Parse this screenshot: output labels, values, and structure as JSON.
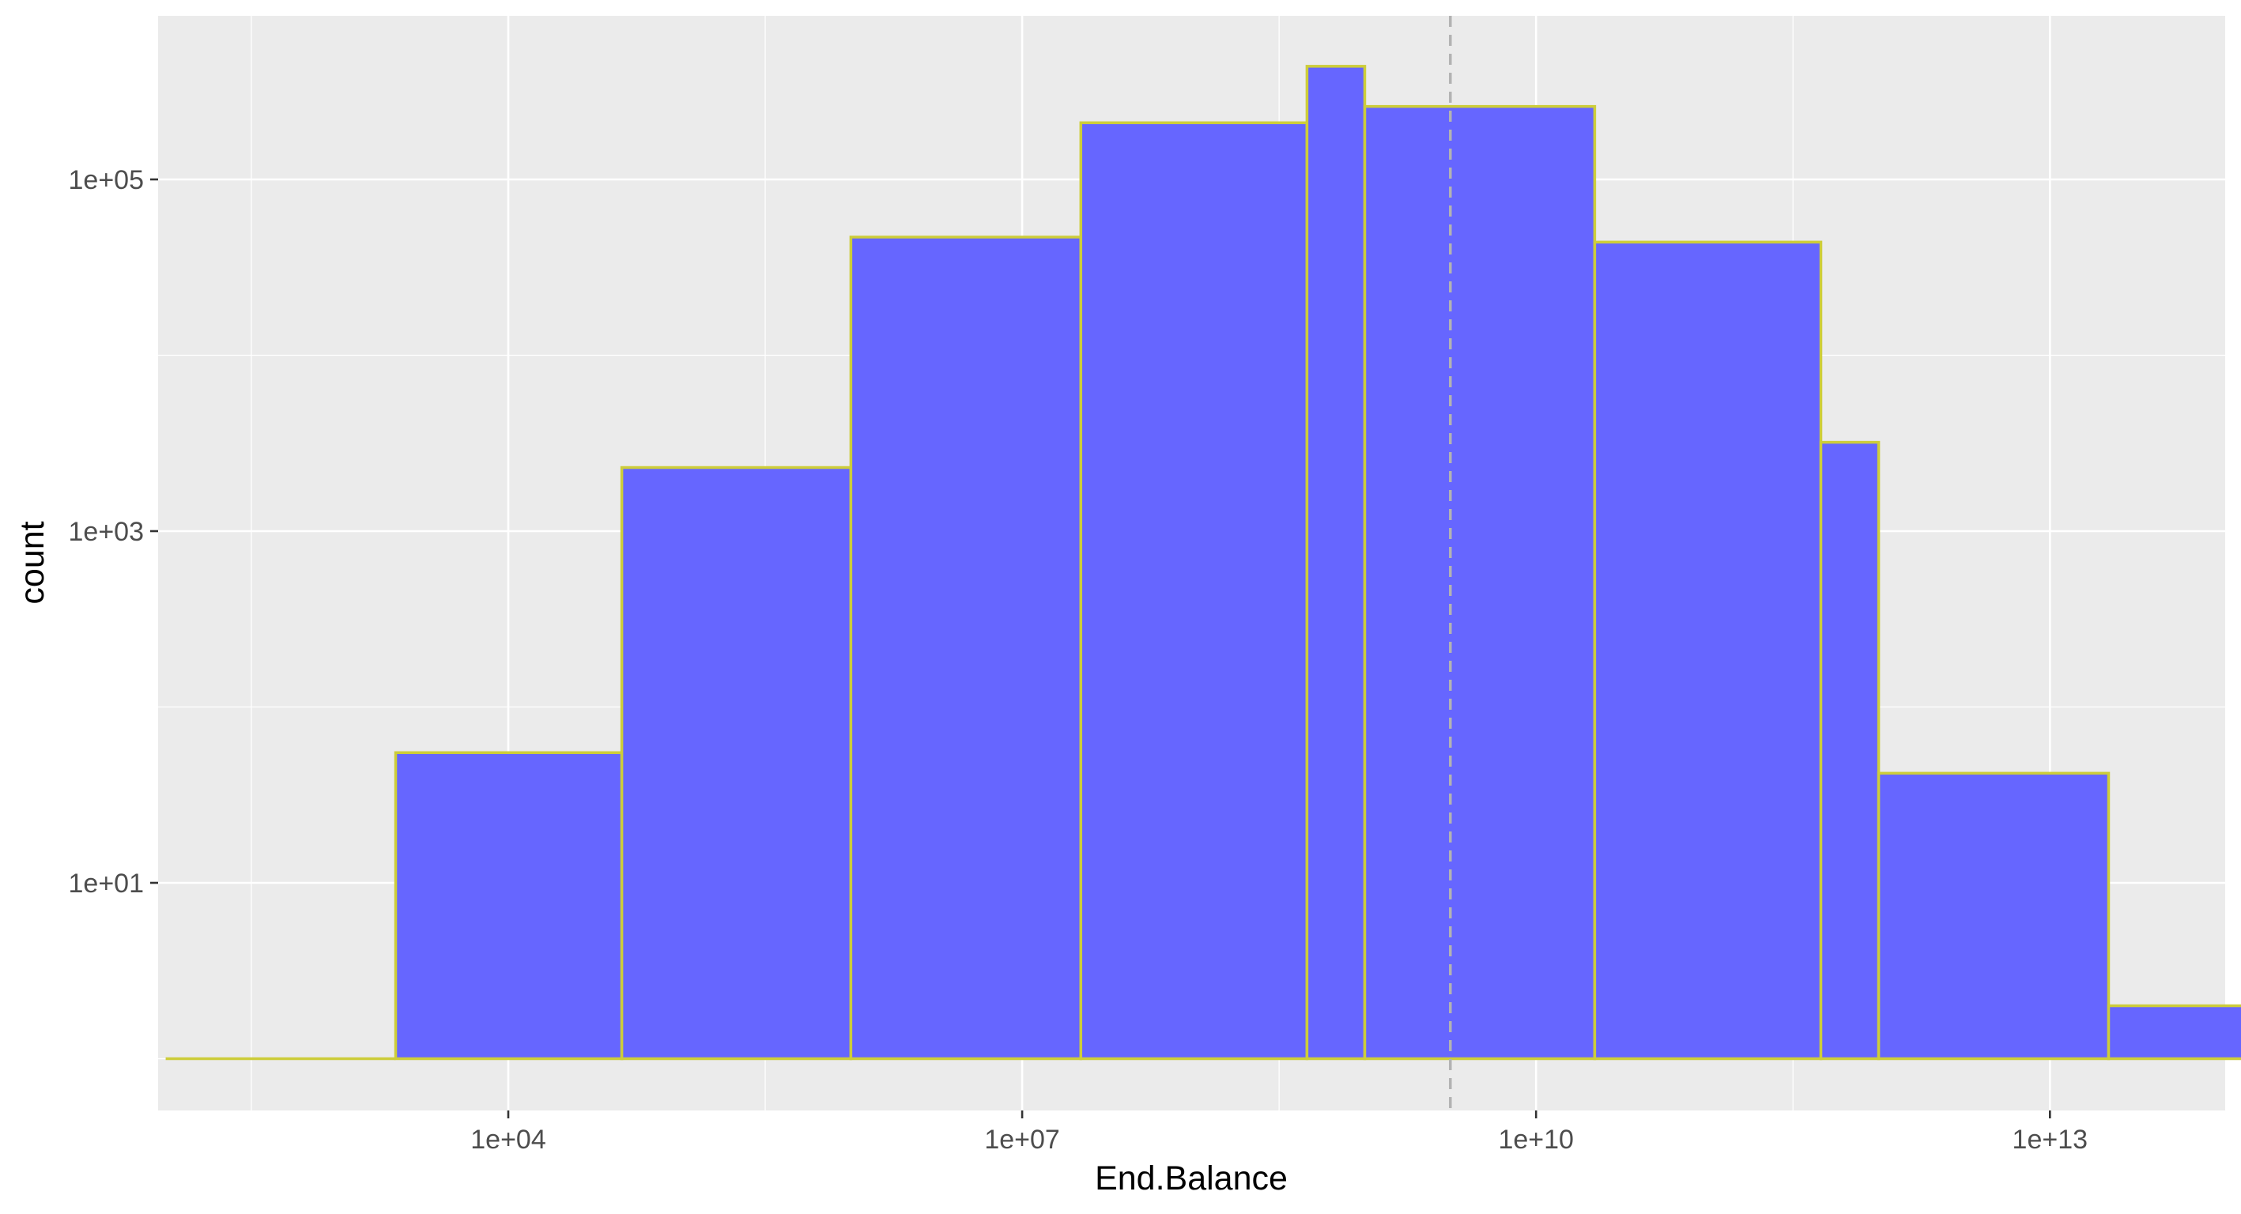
{
  "chart_data": {
    "type": "histogram",
    "title": "",
    "xlabel": "End.Balance",
    "ylabel": "count",
    "x_scale": "log10",
    "y_scale": "log10",
    "xlim": [
      8,
      100000000000000.0
    ],
    "ylim": [
      0.8,
      700000
    ],
    "x_ticks": [
      {
        "value": 10000.0,
        "label": "1e+04"
      },
      {
        "value": 10000000.0,
        "label": "1e+07"
      },
      {
        "value": 10000000000.0,
        "label": "1e+10"
      },
      {
        "value": 10000000000000.0,
        "label": "1e+13"
      }
    ],
    "y_ticks": [
      {
        "value": 10,
        "label": "1e+01"
      },
      {
        "value": 1000,
        "label": "1e+03"
      },
      {
        "value": 100000,
        "label": "1e+05"
      }
    ],
    "bins": [
      {
        "x_start": 100.0,
        "x_end": 2200.0,
        "count": 1
      },
      {
        "x_start": 2200.0,
        "x_end": 46000.0,
        "count": 55
      },
      {
        "x_start": 46000.0,
        "x_end": 1000000.0,
        "count": 2300
      },
      {
        "x_start": 1000000.0,
        "x_end": 22000000.0,
        "count": 47000
      },
      {
        "x_start": 22000000.0,
        "x_end": 460000000.0,
        "count": 210000
      },
      {
        "x_start": 460000000.0,
        "x_end": 1000000000.0,
        "count": 440000
      },
      {
        "x_start": 1000000000.0,
        "x_end": 22000000000.0,
        "count": 260000
      },
      {
        "x_start": 22000000000.0,
        "x_end": 460000000000.0,
        "count": 44000
      },
      {
        "x_start": 460000000000.0,
        "x_end": 1000000000000.0,
        "count": 3200
      },
      {
        "x_start": 1000000000000.0,
        "x_end": 22000000000000.0,
        "count": 42
      },
      {
        "x_start": 22000000000000.0,
        "x_end": 460000000000000.0,
        "count": 2
      }
    ],
    "reference_line": {
      "x": 3160000000.0,
      "style": "dashed"
    },
    "grid": true,
    "colors": {
      "bar_fill": "#6666ff",
      "bar_outline": "#cdcd3a",
      "panel_background": "#ebebeb",
      "grid": "#ffffff",
      "reference_line": "#b3b3b3"
    }
  }
}
